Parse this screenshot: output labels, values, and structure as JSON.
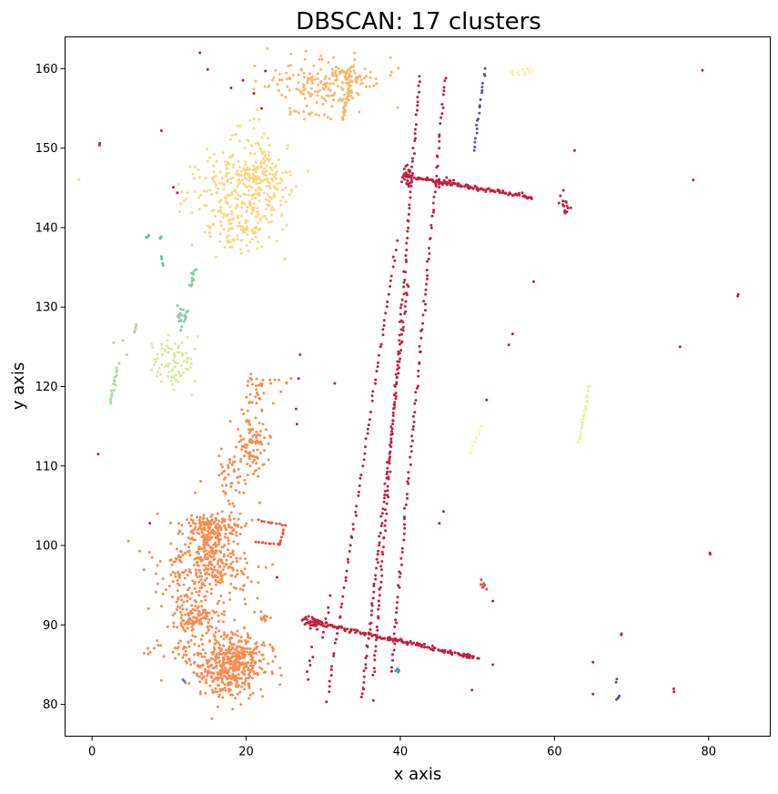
{
  "chart_data": {
    "type": "scatter",
    "title": "DBSCAN: 17 clusters",
    "xlabel": "x axis",
    "ylabel": "y axis",
    "xlim": [
      -3.5,
      88
    ],
    "ylim": [
      76,
      164
    ],
    "xticks": [
      0,
      20,
      40,
      60,
      80
    ],
    "yticks": [
      80,
      90,
      100,
      110,
      120,
      130,
      140,
      150,
      160
    ],
    "grid": false,
    "legend": "none",
    "series": [
      {
        "color": "#c2213f",
        "shapes": [
          {
            "kind": "line",
            "from": [
              36.5,
              83.5
            ],
            "to": [
              42.5,
              159
            ],
            "n": 120,
            "jitter": 0.15
          },
          {
            "kind": "line",
            "from": [
              38.8,
              84
            ],
            "to": [
              45.8,
              159
            ],
            "n": 110,
            "jitter": 0.15
          },
          {
            "kind": "line",
            "from": [
              30.5,
              80.5
            ],
            "to": [
              39.5,
              138
            ],
            "n": 75,
            "jitter": 0.12
          },
          {
            "kind": "line",
            "from": [
              35,
              80.5
            ],
            "to": [
              41,
              133
            ],
            "n": 90,
            "jitter": 0.12
          },
          {
            "kind": "line",
            "from": [
              28,
              90.5
            ],
            "to": [
              50,
              85.8
            ],
            "n": 150,
            "jitter": 0.25
          },
          {
            "kind": "line",
            "from": [
              40.5,
              146.5
            ],
            "to": [
              57,
              143.8
            ],
            "n": 130,
            "jitter": 0.25
          },
          {
            "kind": "blob",
            "center": [
              28.8,
              90.5
            ],
            "spread": [
              0.6,
              0.4
            ],
            "n": 35
          },
          {
            "kind": "blob",
            "center": [
              40.8,
              146.3
            ],
            "spread": [
              0.4,
              0.6
            ],
            "n": 25
          },
          {
            "kind": "blob",
            "center": [
              45.5,
              145.6
            ],
            "spread": [
              0.6,
              0.3
            ],
            "n": 18
          },
          {
            "kind": "blob",
            "center": [
              61.3,
              143
            ],
            "spread": [
              0.4,
              1.0
            ],
            "n": 15
          },
          {
            "kind": "blob",
            "center": [
              48.8,
              86
            ],
            "spread": [
              0.3,
              0.3
            ],
            "n": 8
          },
          {
            "kind": "line",
            "from": [
              28,
              83
            ],
            "to": [
              28.6,
              87
            ],
            "n": 6,
            "jitter": 0.3
          },
          {
            "kind": "line",
            "from": [
              30,
              88.5
            ],
            "to": [
              31,
              93.5
            ],
            "n": 6,
            "jitter": 0.3
          },
          {
            "kind": "line",
            "from": [
              26.5,
              116.8
            ],
            "to": [
              26.6,
              115.2
            ],
            "n": 2,
            "jitter": 0.05
          },
          {
            "kind": "line",
            "from": [
              45.5,
              104
            ],
            "to": [
              45,
              102.5
            ],
            "n": 2,
            "jitter": 0.05
          },
          {
            "kind": "line",
            "from": [
              54,
              125
            ],
            "to": [
              54.5,
              126.3
            ],
            "n": 2,
            "jitter": 0.05
          },
          {
            "kind": "line",
            "from": [
              18,
              157.5
            ],
            "to": [
              19.5,
              158.5
            ],
            "n": 2,
            "jitter": 0.1
          },
          {
            "kind": "line",
            "from": [
              11,
              144.5
            ],
            "to": [
              10.5,
              145.2
            ],
            "n": 2,
            "jitter": 0.05
          },
          {
            "kind": "line",
            "from": [
              1,
              150.4
            ],
            "to": [
              1,
              150.6
            ],
            "n": 2,
            "jitter": 0.05
          },
          {
            "kind": "line",
            "from": [
              83.8,
              131.3
            ],
            "to": [
              83.8,
              131.6
            ],
            "n": 2,
            "jitter": 0.05
          },
          {
            "kind": "line",
            "from": [
              80.2,
              98.9
            ],
            "to": [
              80.2,
              99.1
            ],
            "n": 2,
            "jitter": 0.05
          },
          {
            "kind": "line",
            "from": [
              75.5,
              81.6
            ],
            "to": [
              75.5,
              81.9
            ],
            "n": 2,
            "jitter": 0.05
          },
          {
            "kind": "line",
            "from": [
              68.6,
              88.7
            ],
            "to": [
              68.7,
              88.9
            ],
            "n": 2,
            "jitter": 0.05
          }
        ],
        "points": [
          [
            0.8,
            111.5
          ],
          [
            7.5,
            102.8
          ],
          [
            9,
            152.2
          ],
          [
            15,
            159.9
          ],
          [
            21,
            156.9
          ],
          [
            22.5,
            159.7
          ],
          [
            27,
            124
          ],
          [
            31.5,
            120.4
          ],
          [
            46,
            146.3
          ],
          [
            51.2,
            118.3
          ],
          [
            57.3,
            133.2
          ],
          [
            62.6,
            149.7
          ],
          [
            76.3,
            125
          ],
          [
            78,
            146
          ],
          [
            79.2,
            159.8
          ],
          [
            52,
            93
          ],
          [
            52,
            85
          ],
          [
            49.3,
            81.8
          ],
          [
            65,
            85.3
          ],
          [
            65,
            81.3
          ],
          [
            24,
            96
          ],
          [
            36.5,
            80.5
          ],
          [
            26.8,
            121
          ],
          [
            22,
            155
          ],
          [
            14,
            162
          ]
        ]
      },
      {
        "color": "#e8563e",
        "shapes": [
          {
            "kind": "line",
            "from": [
              21.5,
              103.2
            ],
            "to": [
              25,
              102.5
            ],
            "n": 10,
            "jitter": 0.08
          },
          {
            "kind": "line",
            "from": [
              25,
              102.5
            ],
            "to": [
              24.3,
              100.1
            ],
            "n": 8,
            "jitter": 0.08
          },
          {
            "kind": "line",
            "from": [
              21.2,
              100.5
            ],
            "to": [
              24.3,
              100.1
            ],
            "n": 10,
            "jitter": 0.08
          },
          {
            "kind": "blob",
            "center": [
              50.8,
              95
            ],
            "spread": [
              0.25,
              0.35
            ],
            "n": 7
          }
        ],
        "points": [
          [
            50.5,
            95.7
          ],
          [
            51.2,
            94.5
          ]
        ]
      },
      {
        "color": "#f88d52",
        "shapes": [
          {
            "kind": "blob",
            "center": [
              18,
              85
            ],
            "spread": [
              2.2,
              2.0
            ],
            "n": 480
          },
          {
            "kind": "blob",
            "center": [
              15,
              99
            ],
            "spread": [
              1.6,
              2.4
            ],
            "n": 240
          },
          {
            "kind": "blob",
            "center": [
              16,
              102.5
            ],
            "spread": [
              2.0,
              1.0
            ],
            "n": 120
          },
          {
            "kind": "blob",
            "center": [
              13.5,
              91
            ],
            "spread": [
              1.6,
              1.1
            ],
            "n": 120
          },
          {
            "kind": "blob",
            "center": [
              21,
              113.5
            ],
            "spread": [
              1.1,
              2.3
            ],
            "n": 100
          },
          {
            "kind": "blob",
            "center": [
              18.5,
              108.5
            ],
            "spread": [
              1.2,
              1.5
            ],
            "n": 45
          },
          {
            "kind": "blob",
            "center": [
              11,
              87
            ],
            "spread": [
              1.6,
              0.6
            ],
            "n": 30
          },
          {
            "kind": "blob",
            "center": [
              18,
              96.5
            ],
            "spread": [
              1.8,
              1.5
            ],
            "n": 45
          },
          {
            "kind": "blob",
            "center": [
              21.3,
              119.5
            ],
            "spread": [
              0.7,
              1.1
            ],
            "n": 18
          },
          {
            "kind": "blob",
            "center": [
              22.5,
              91
            ],
            "spread": [
              0.3,
              0.5
            ],
            "n": 12
          },
          {
            "kind": "blob",
            "center": [
              11,
              97
            ],
            "spread": [
              1.0,
              2.0
            ],
            "n": 30
          },
          {
            "kind": "blob",
            "center": [
              12,
              95
            ],
            "spread": [
              2.5,
              2.8
            ],
            "n": 60
          },
          {
            "kind": "blob",
            "center": [
              22,
              120.5
            ],
            "spread": [
              1.5,
              0.6
            ],
            "n": 10
          }
        ],
        "points": [
          [
            9,
            83
          ],
          [
            25.2,
            120.5
          ],
          [
            25.8,
            121
          ],
          [
            8.5,
            104
          ],
          [
            7.8,
            98.5
          ],
          [
            20.5,
            110
          ]
        ]
      },
      {
        "color": "#fdb567",
        "shapes": [
          {
            "kind": "blob",
            "center": [
              30,
              158
            ],
            "spread": [
              3.5,
              1.6
            ],
            "n": 170
          },
          {
            "kind": "blob",
            "center": [
              33.5,
              158.7
            ],
            "spread": [
              1.5,
              0.8
            ],
            "n": 35
          },
          {
            "kind": "line",
            "from": [
              32.5,
              153.5
            ],
            "to": [
              33.5,
              158.5
            ],
            "n": 30,
            "jitter": 0.15
          },
          {
            "kind": "line",
            "from": [
              25.5,
              155
            ],
            "to": [
              31,
              153.8
            ],
            "n": 12,
            "jitter": 0.3
          }
        ],
        "points": []
      },
      {
        "color": "#fed682",
        "shapes": [
          {
            "kind": "blob",
            "center": [
              20,
              145
            ],
            "spread": [
              3.0,
              3.5
            ],
            "n": 280
          },
          {
            "kind": "blob",
            "center": [
              22,
              146.5
            ],
            "spread": [
              1.2,
              1.8
            ],
            "n": 60
          },
          {
            "kind": "blob",
            "center": [
              19,
              140
            ],
            "spread": [
              2.0,
              1.5
            ],
            "n": 60
          },
          {
            "kind": "blob",
            "center": [
              17.5,
              144.5
            ],
            "spread": [
              4.0,
              2.0
            ],
            "n": 50
          }
        ],
        "points": [
          [
            21,
            152.5
          ],
          [
            20.5,
            153.5
          ],
          [
            11.5,
            143
          ]
        ]
      },
      {
        "color": "#fff0a6",
        "shapes": [
          {
            "kind": "blob",
            "center": [
              56,
              159.6
            ],
            "spread": [
              0.9,
              0.25
            ],
            "n": 14
          },
          {
            "kind": "line",
            "from": [
              49,
              111.5
            ],
            "to": [
              50.5,
              115
            ],
            "n": 8,
            "jitter": 0.1
          }
        ],
        "points": []
      },
      {
        "color": "#e6f598",
        "shapes": [
          {
            "kind": "line",
            "from": [
              63.2,
              113
            ],
            "to": [
              64.5,
              120
            ],
            "n": 28,
            "jitter": 0.15
          }
        ],
        "points": []
      },
      {
        "color": "#d2ec9c",
        "shapes": [
          {
            "kind": "blob",
            "center": [
              10.5,
              123.3
            ],
            "spread": [
              1.3,
              1.5
            ],
            "n": 80
          }
        ],
        "points": [
          [
            8.5,
            121.8
          ],
          [
            10,
            121.8
          ]
        ]
      },
      {
        "color": "#acdc9d",
        "shapes": [
          {
            "kind": "line",
            "from": [
              2.4,
              117.8
            ],
            "to": [
              3.4,
              123
            ],
            "n": 22,
            "jitter": 0.2
          },
          {
            "kind": "line",
            "from": [
              5.5,
              126.8
            ],
            "to": [
              5.8,
              128
            ],
            "n": 6,
            "jitter": 0.1
          }
        ],
        "points": [
          [
            2.8,
            125.5
          ],
          [
            4,
            125.8
          ],
          [
            4.5,
            124
          ]
        ]
      },
      {
        "color": "#82cca5",
        "shapes": [
          {
            "kind": "blob",
            "center": [
              11.5,
              128.5
            ],
            "spread": [
              0.5,
              0.7
            ],
            "n": 22
          },
          {
            "kind": "line",
            "from": [
              12.8,
              132.5
            ],
            "to": [
              13.3,
              134.8
            ],
            "n": 12,
            "jitter": 0.2
          }
        ],
        "points": []
      },
      {
        "color": "#62bda8",
        "shapes": [
          {
            "kind": "line",
            "from": [
              7,
              138.7
            ],
            "to": [
              7.4,
              139.1
            ],
            "n": 4,
            "jitter": 0.05
          },
          {
            "kind": "line",
            "from": [
              9,
              136.3
            ],
            "to": [
              9.2,
              135.2
            ],
            "n": 4,
            "jitter": 0.05
          },
          {
            "kind": "line",
            "from": [
              8.8,
              138.6
            ],
            "to": [
              9,
              138.9
            ],
            "n": 3,
            "jitter": 0.05
          }
        ],
        "points": []
      },
      {
        "color": "#3aa0b1",
        "shapes": [
          {
            "kind": "blob",
            "center": [
              39.5,
              84.2
            ],
            "spread": [
              0.18,
              0.15
            ],
            "n": 5
          }
        ],
        "points": []
      },
      {
        "color": "#437fb8",
        "shapes": [],
        "points": [
          [
            11.8,
            83.1
          ],
          [
            12,
            82.9
          ]
        ]
      },
      {
        "color": "#5e4fa2",
        "shapes": [
          {
            "kind": "line",
            "from": [
              49.5,
              149.5
            ],
            "to": [
              51,
              160
            ],
            "n": 20,
            "jitter": 0.1
          },
          {
            "kind": "line",
            "from": [
              68.1,
              80.6
            ],
            "to": [
              68.5,
              81.1
            ],
            "n": 4,
            "jitter": 0.05
          }
        ],
        "points": [
          [
            68,
            82.8
          ],
          [
            68.1,
            83.2
          ]
        ]
      }
    ]
  }
}
